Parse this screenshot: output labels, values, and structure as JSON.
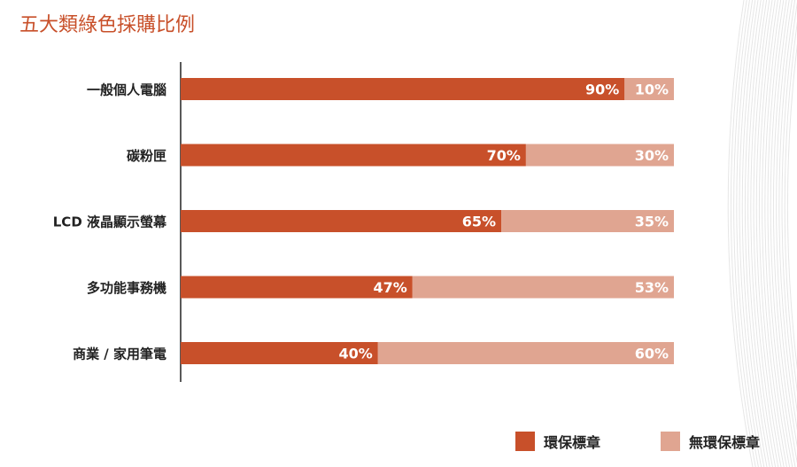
{
  "title": "五大類綠色採購比例",
  "colors": {
    "green": "#c8502a",
    "non_green": "#e0a591",
    "title": "#c8502a"
  },
  "chart_data": {
    "type": "bar",
    "orientation": "horizontal",
    "stacked": true,
    "percent_scale": [
      0,
      100
    ],
    "categories": [
      "一般個人電腦",
      "碳粉匣",
      "LCD 液晶顯示螢幕",
      "多功能事務機",
      "商業 / 家用筆電"
    ],
    "series": [
      {
        "name": "環保標章",
        "values": [
          90,
          70,
          65,
          47,
          40
        ],
        "labels": [
          "90%",
          "70%",
          "65%",
          "47%",
          "40%"
        ]
      },
      {
        "name": "無環保標章",
        "values": [
          10,
          30,
          35,
          53,
          60
        ],
        "labels": [
          "10%",
          "30%",
          "35%",
          "53%",
          "60%"
        ]
      }
    ],
    "legend_position": "bottom-right",
    "grid": false
  }
}
